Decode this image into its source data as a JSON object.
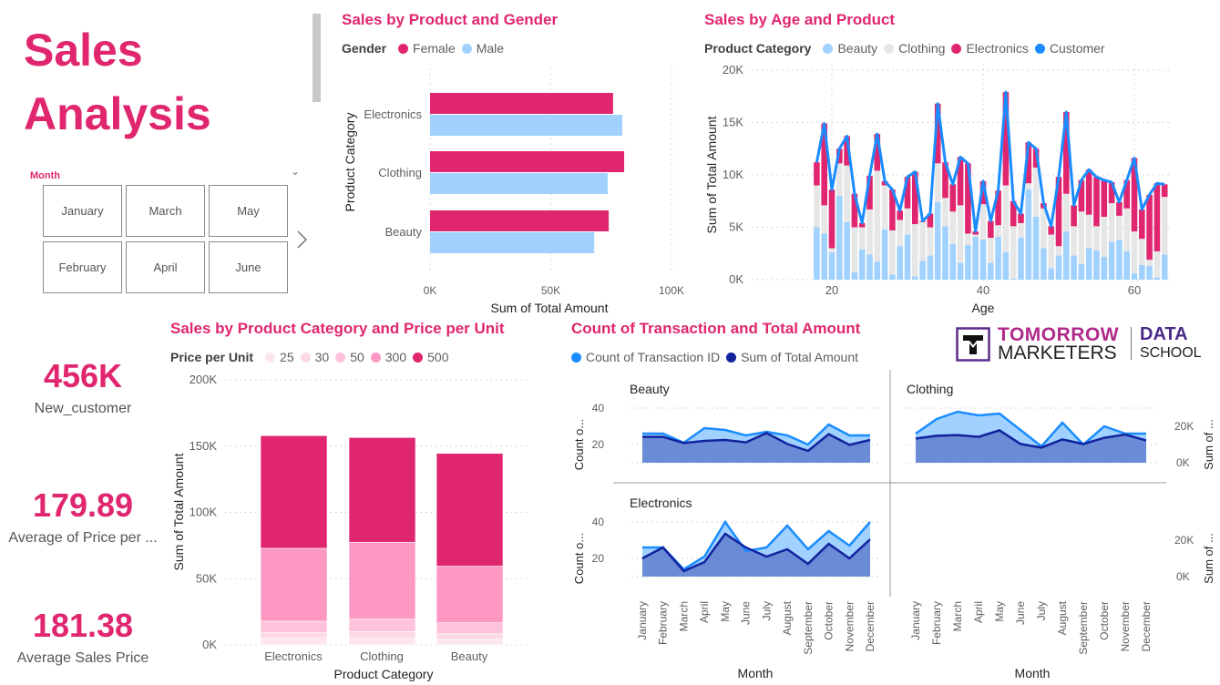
{
  "page": {
    "title_line1": "Sales",
    "title_line2": "Analysis"
  },
  "slicer": {
    "label": "Month",
    "options": [
      "January",
      "March",
      "May",
      "February",
      "April",
      "June"
    ]
  },
  "kpis": [
    {
      "value": "456K",
      "label": "New_customer"
    },
    {
      "value": "179.89",
      "label": "Average of Price per ..."
    },
    {
      "value": "181.38",
      "label": "Average Sales Price"
    }
  ],
  "logo": {
    "line1": "TOMORROW",
    "line2": "MARKETERS",
    "line3": "DATA",
    "line4": "SCHOOL"
  },
  "colors": {
    "accent": "#E0266F",
    "female": "#E0266F",
    "male": "#A0D1FF",
    "beauty": "#A0D1FF",
    "clothing": "#E6E6E6",
    "electronics": "#E0266F",
    "customer": "#1A8CFF",
    "count_line": "#1A8CFF",
    "sum_line": "#12239E"
  },
  "chart_data": [
    {
      "type": "bar",
      "orientation": "horizontal",
      "title": "Sales by Product and Gender",
      "legend_title": "Gender",
      "categories": [
        "Electronics",
        "Clothing",
        "Beauty"
      ],
      "series": [
        {
          "name": "Female",
          "values": [
            75800,
            80400,
            74000
          ]
        },
        {
          "name": "Male",
          "values": [
            79600,
            73600,
            68000
          ]
        }
      ],
      "xlabel": "Sum of Total Amount",
      "ylabel": "Product Category",
      "xticks": [
        "0K",
        "50K",
        "100K"
      ],
      "xlim": [
        0,
        100000
      ]
    },
    {
      "type": "bar",
      "stacked": true,
      "title": "Sales by Age and Product",
      "legend_title": "Product Category",
      "legend": [
        "Beauty",
        "Clothing",
        "Electronics",
        "Customer"
      ],
      "x": [
        18,
        19,
        20,
        21,
        22,
        23,
        24,
        25,
        26,
        27,
        28,
        29,
        30,
        31,
        32,
        33,
        34,
        35,
        36,
        37,
        38,
        39,
        40,
        41,
        42,
        43,
        44,
        45,
        46,
        47,
        48,
        49,
        50,
        51,
        52,
        53,
        54,
        55,
        56,
        57,
        58,
        59,
        60,
        61,
        62,
        63,
        64
      ],
      "series": [
        {
          "name": "Beauty",
          "values": [
            5000,
            4400,
            2600,
            8000,
            5500,
            700,
            2900,
            2400,
            1700,
            4800,
            500,
            3200,
            4300,
            300,
            1800,
            2300,
            7400,
            5100,
            3400,
            1600,
            3300,
            4100,
            3800,
            1600,
            4100,
            2600,
            100,
            4000,
            8600,
            6000,
            3000,
            1100,
            2300,
            4600,
            2300,
            1500,
            3000,
            2800,
            2200,
            3600,
            3800,
            2700,
            600,
            1400,
            1300,
            200,
            2400
          ]
        },
        {
          "name": "Clothing",
          "values": [
            4000,
            2700,
            400,
            3100,
            5400,
            4300,
            2100,
            4300,
            8700,
            4200,
            4200,
            2500,
            2500,
            5000,
            3700,
            2700,
            3700,
            2700,
            3100,
            5500,
            1100,
            200,
            3400,
            2400,
            1100,
            6400,
            5000,
            1400,
            600,
            4700,
            3800,
            3200,
            900,
            3600,
            2800,
            5000,
            3200,
            2300,
            3800,
            3700,
            2300,
            4100,
            4000,
            2500,
            600,
            2500,
            5500
          ]
        },
        {
          "name": "Electronics",
          "values": [
            2200,
            7800,
            5600,
            1400,
            2800,
            3200,
            400,
            3200,
            3500,
            400,
            3900,
            900,
            3000,
            5000,
            100,
            1300,
            5700,
            3400,
            2600,
            4600,
            6700,
            300,
            2200,
            1600,
            3300,
            8900,
            2400,
            900,
            3900,
            1800,
            500,
            800,
            6600,
            7800,
            2000,
            3000,
            4300,
            4700,
            3500,
            2000,
            1300,
            2700,
            7000,
            2800,
            6200,
            6500,
            1200
          ]
        }
      ],
      "line_series": "Customer",
      "xlabel": "Age",
      "ylabel": "Sum of Total Amount",
      "yticks": [
        "0K",
        "5K",
        "10K",
        "15K",
        "20K"
      ],
      "ylim": [
        0,
        20000
      ],
      "xticks": [
        "20",
        "40",
        "60"
      ]
    },
    {
      "type": "bar",
      "stacked": true,
      "title": "Sales by Product Category and Price per Unit",
      "legend_title": "Price per Unit",
      "categories": [
        "Electronics",
        "Clothing",
        "Beauty"
      ],
      "series": [
        {
          "name": "25",
          "color": "#FDE6EE",
          "values": [
            5000,
            5000,
            4100
          ]
        },
        {
          "name": "30",
          "color": "#FCD9E6",
          "values": [
            4200,
            5000,
            4200
          ]
        },
        {
          "name": "50",
          "color": "#FEC2DA",
          "values": [
            8700,
            9500,
            8400
          ]
        },
        {
          "name": "300",
          "color": "#FD98C2",
          "values": [
            55000,
            58000,
            42700
          ]
        },
        {
          "name": "500",
          "color": "#E0266F",
          "values": [
            85000,
            79000,
            85100
          ]
        }
      ],
      "xlabel": "Product Category",
      "ylabel": "Sum of Total Amount",
      "yticks": [
        "0K",
        "50K",
        "100K",
        "150K",
        "200K"
      ],
      "ylim": [
        0,
        200000
      ]
    },
    {
      "type": "area",
      "title": "Count of Transaction and Total Amount",
      "legend": [
        "Count of Transaction ID",
        "Sum of Total Amount"
      ],
      "months": [
        "January",
        "February",
        "March",
        "April",
        "May",
        "June",
        "July",
        "August",
        "September",
        "October",
        "November",
        "December"
      ],
      "xlabel": "Month",
      "ylabel_left": "Count o...",
      "ylabel_right": "Sum of ...",
      "left_ticks": [
        "20",
        "40"
      ],
      "right_ticks": [
        "0K",
        "20K"
      ],
      "panels": [
        {
          "name": "Beauty",
          "count": [
            26,
            26,
            21,
            29,
            28,
            25,
            27,
            25,
            20,
            31,
            25,
            25
          ],
          "sum": [
            14200,
            14200,
            10800,
            12000,
            12500,
            11200,
            16300,
            10300,
            6500,
            15700,
            9800,
            12500
          ]
        },
        {
          "name": "Clothing",
          "count": [
            26,
            34,
            38,
            36,
            37,
            28,
            19,
            32,
            20,
            30,
            26,
            26
          ],
          "sum": [
            13300,
            14800,
            15200,
            14200,
            17800,
            10300,
            8300,
            12800,
            10300,
            13700,
            15500,
            12200
          ]
        },
        {
          "name": "Electronics",
          "count": [
            26,
            26,
            14,
            21,
            40,
            24,
            26,
            38,
            25,
            35,
            27,
            40
          ],
          "sum": [
            10000,
            16000,
            3000,
            8000,
            23500,
            16000,
            11000,
            15000,
            7000,
            18000,
            10000,
            20500
          ]
        }
      ]
    }
  ]
}
